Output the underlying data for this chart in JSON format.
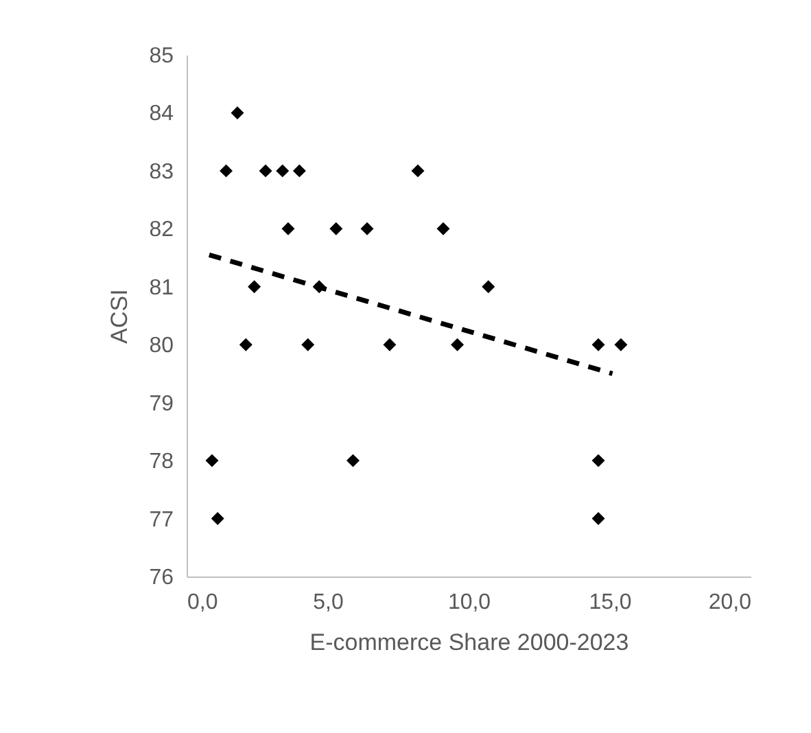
{
  "chart_data": {
    "type": "scatter",
    "xlabel": "E-commerce Share 2000-2023",
    "ylabel": "ACSI",
    "xlim": [
      0,
      20
    ],
    "xticks": [
      {
        "value": 0,
        "label": "0,0"
      },
      {
        "value": 5,
        "label": "5,0"
      },
      {
        "value": 10,
        "label": "10,0"
      },
      {
        "value": 15,
        "label": "15,0"
      },
      {
        "value": 20,
        "label": "20,0"
      }
    ],
    "ylim": [
      76,
      85
    ],
    "yticks": [
      76,
      77,
      78,
      79,
      80,
      81,
      82,
      83,
      84,
      85
    ],
    "grid": false,
    "series": [
      {
        "color": "#000000",
        "marker": "diamond",
        "x": [
          0.9,
          1.1,
          1.4,
          1.8,
          2.1,
          2.4,
          2.8,
          3.4,
          3.6,
          4.0,
          4.3,
          4.7,
          5.3,
          5.9,
          6.4,
          7.2,
          8.2,
          9.1,
          9.6,
          10.7,
          14.6,
          14.6,
          14.6,
          15.4
        ],
        "values": [
          78,
          77,
          83,
          84,
          80,
          81,
          83,
          83,
          82,
          83,
          80,
          81,
          82,
          78,
          82,
          80,
          83,
          82,
          80,
          81,
          80,
          78,
          77,
          80
        ]
      },
      {
        "type": "line",
        "color": "#000000",
        "line_style": "dashed",
        "x": [
          0.8,
          15.1
        ],
        "values": [
          81.55,
          79.5
        ]
      }
    ]
  }
}
